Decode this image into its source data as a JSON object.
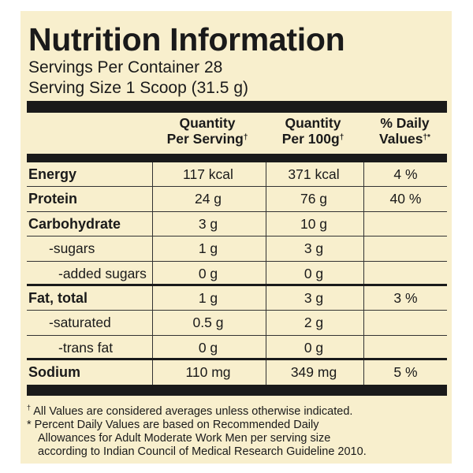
{
  "header": {
    "title": "Nutrition Information",
    "servings": "Servings Per Container 28",
    "serving_size": "Serving Size 1 Scoop (31.5 g)"
  },
  "columns": {
    "per_serving_line1": "Quantity",
    "per_serving_line2": "Per Serving",
    "per_100g_line1": "Quantity",
    "per_100g_line2": "Per 100g",
    "daily_line1": "% Daily",
    "daily_line2": "Values",
    "dagger": "†",
    "dagger_star": "†*"
  },
  "rows": [
    {
      "name": "Energy",
      "per_serving": "117 kcal",
      "per_100g": "371 kcal",
      "daily": "4 %"
    },
    {
      "name": "Protein",
      "per_serving": "24 g",
      "per_100g": "76 g",
      "daily": "40 %"
    },
    {
      "name": "Carbohydrate",
      "per_serving": "3 g",
      "per_100g": "10 g",
      "daily": ""
    },
    {
      "name": "-sugars",
      "per_serving": "1 g",
      "per_100g": "3 g",
      "daily": ""
    },
    {
      "name": "-added sugars",
      "per_serving": "0 g",
      "per_100g": "0 g",
      "daily": ""
    },
    {
      "name": "Fat, total",
      "per_serving": "1 g",
      "per_100g": "3 g",
      "daily": "3 %"
    },
    {
      "name": "-saturated",
      "per_serving": "0.5 g",
      "per_100g": "2 g",
      "daily": ""
    },
    {
      "name": "-trans fat",
      "per_serving": "0 g",
      "per_100g": "0 g",
      "daily": ""
    },
    {
      "name": "Sodium",
      "per_serving": "110 mg",
      "per_100g": "349 mg",
      "daily": "5 %"
    }
  ],
  "footnotes": {
    "dagger_mark": "†",
    "line1": "All Values are considered averages unless otherwise indicated.",
    "line2": "* Percent Daily Values are based on Recommended Daily",
    "line3": "Allowances for Adult Moderate Work Men per serving size",
    "line4": "according to Indian Council of Medical Research Guideline 2010."
  },
  "colors": {
    "background": "#f8efcd",
    "ink": "#1a1a1a"
  }
}
